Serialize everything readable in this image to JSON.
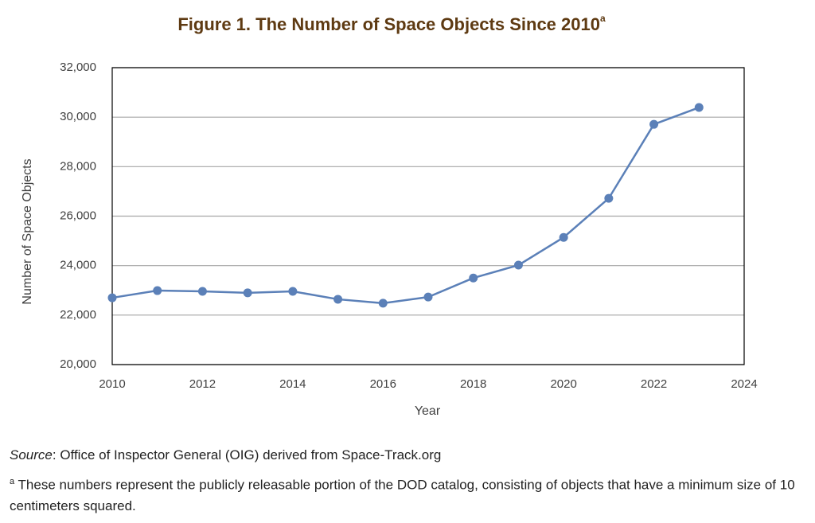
{
  "chart_data": {
    "type": "line",
    "title": "Figure 1. The Number of Space Objects Since 2010",
    "title_superscript": "a",
    "x_label": "Year",
    "y_label": "Number of Space Objects",
    "x": [
      2010,
      2011,
      2012,
      2013,
      2014,
      2015,
      2016,
      2017,
      2018,
      2019,
      2020,
      2021,
      2022,
      2023
    ],
    "series": [
      {
        "name": "Number of Space Objects",
        "color": "#5b80b8",
        "values": [
          22700,
          22990,
          22960,
          22900,
          22960,
          22640,
          22480,
          22730,
          23500,
          24020,
          25140,
          26720,
          29710,
          30390
        ]
      }
    ],
    "xlim": [
      2010,
      2024
    ],
    "xticks": [
      2010,
      2012,
      2014,
      2016,
      2018,
      2020,
      2022,
      2024
    ],
    "ylim": [
      20000,
      32000
    ],
    "yticks": [
      {
        "value": 20000,
        "label": "20,000"
      },
      {
        "value": 22000,
        "label": "22,000"
      },
      {
        "value": 24000,
        "label": "24,000"
      },
      {
        "value": 26000,
        "label": "26,000"
      },
      {
        "value": 28000,
        "label": "28,000"
      },
      {
        "value": 30000,
        "label": "30,000"
      },
      {
        "value": 32000,
        "label": "32,000"
      }
    ],
    "grid": true,
    "source_label": "Source",
    "source_text": ": Office of Inspector General (OIG) derived from Space-Track.org",
    "footnote_marker": "a",
    "footnote_text": " These numbers represent the publicly releasable portion of the DOD catalog, consisting of objects that have a minimum size of 10 centimeters squared."
  }
}
